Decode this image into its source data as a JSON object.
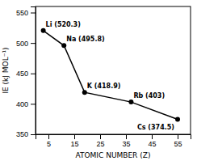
{
  "chart_data": {
    "type": "line",
    "x": [
      3,
      11,
      19,
      37,
      55
    ],
    "values": [
      520.3,
      495.8,
      418.9,
      403,
      374.5
    ],
    "value_labels": [
      "Li (520.3)",
      "Na (495.8)",
      "K (418.9)",
      "Rb (403)",
      "Cs (374.5)"
    ],
    "data_labels": true,
    "color": "#000000",
    "marker": "circle",
    "xlabel": "ATOMIC NUMBER (Z)",
    "ylabel": "IE (kJ MOL⁻¹)",
    "xlim": [
      0,
      60
    ],
    "ylim": [
      350,
      560
    ],
    "xticks": [
      5,
      15,
      25,
      35,
      45,
      55
    ],
    "yticks": [
      350,
      400,
      450,
      500,
      550
    ]
  }
}
